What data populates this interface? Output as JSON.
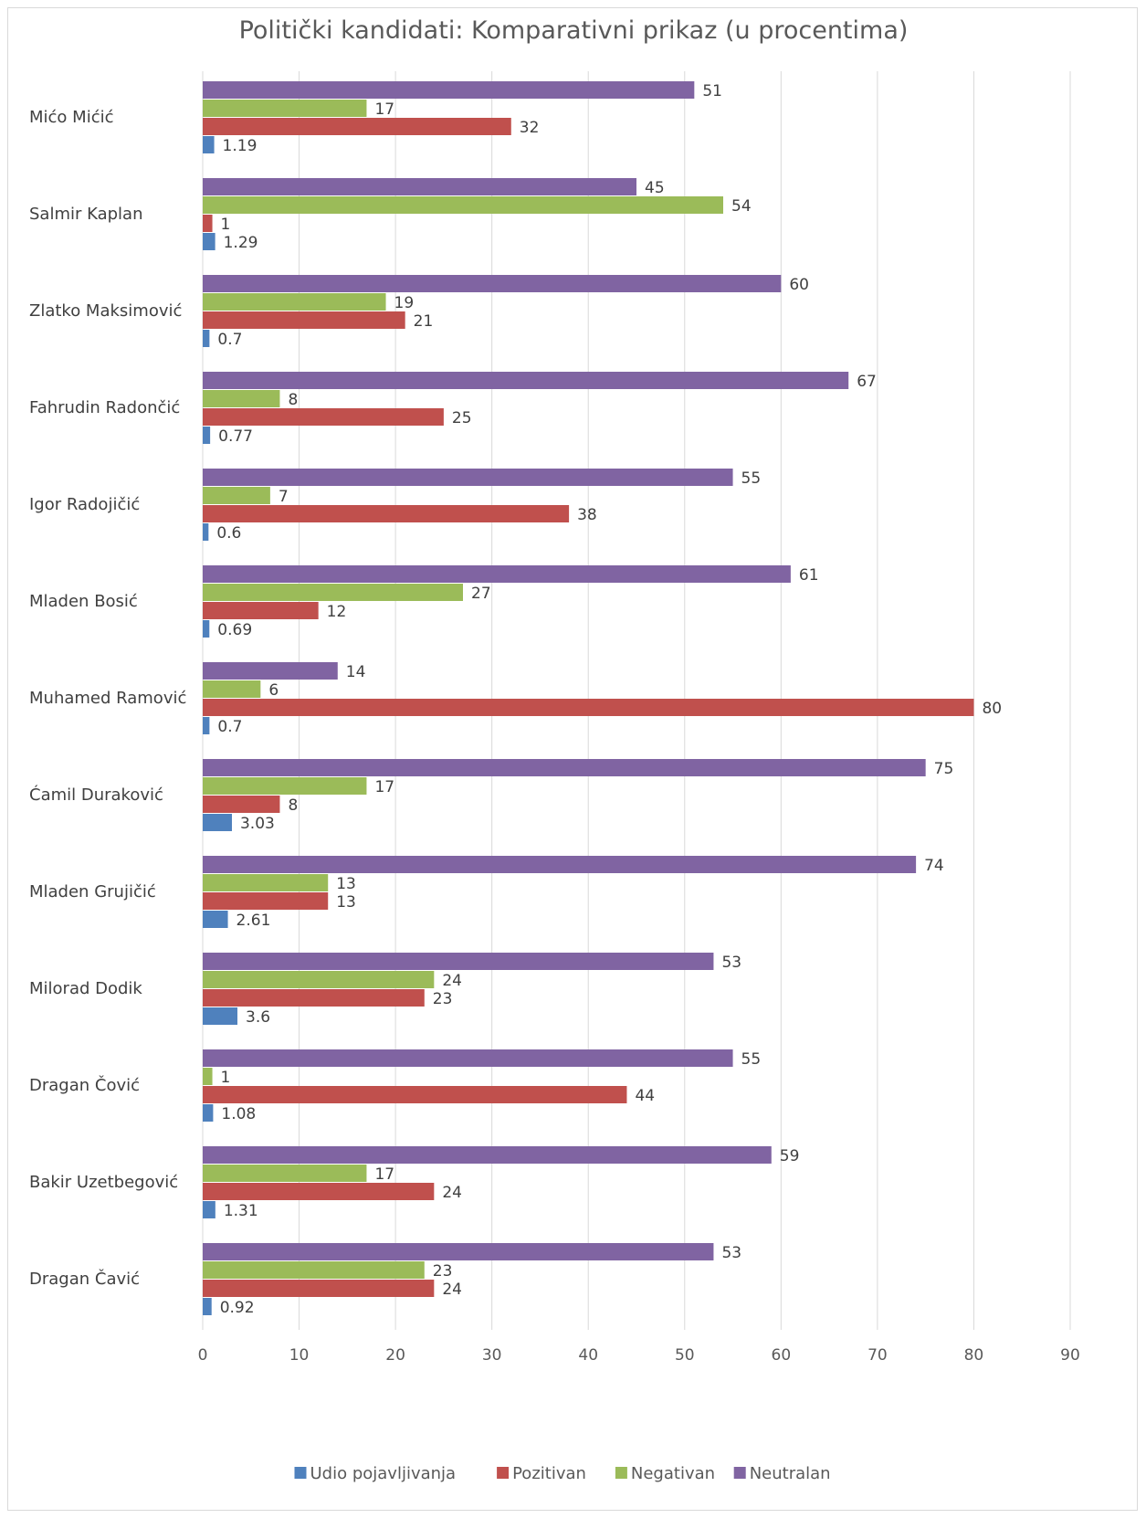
{
  "chart_data": {
    "type": "bar",
    "orientation": "horizontal",
    "title": "Politički kandidati: Komparativni prikaz (u procentima)",
    "categories": [
      "Mićo Mićić",
      "Salmir Kaplan",
      "Zlatko Maksimović",
      "Fahrudin Radončić",
      "Igor Radojičić",
      "Mladen Bosić",
      "Muhamed Ramović",
      "Ćamil Duraković",
      "Mladen Grujičić",
      "Milorad Dodik",
      "Dragan Čović",
      "Bakir Uzetbegović",
      "Dragan Čavić"
    ],
    "series": [
      {
        "name": "Udio pojavljivanja",
        "color": "#4f81bd",
        "values": [
          1.19,
          1.29,
          0.7,
          0.77,
          0.6,
          0.69,
          0.7,
          3.03,
          2.61,
          3.6,
          1.08,
          1.31,
          0.92
        ]
      },
      {
        "name": "Pozitivan",
        "color": "#c0504d",
        "values": [
          32,
          1,
          21,
          25,
          38,
          12,
          80,
          8,
          13,
          23,
          44,
          24,
          24
        ]
      },
      {
        "name": "Negativan",
        "color": "#9bbb59",
        "values": [
          17,
          54,
          19,
          8,
          7,
          27,
          6,
          17,
          13,
          24,
          1,
          17,
          23
        ]
      },
      {
        "name": "Neutralan",
        "color": "#8064a2",
        "values": [
          51,
          45,
          60,
          67,
          55,
          61,
          14,
          75,
          74,
          53,
          55,
          59,
          53
        ]
      }
    ],
    "xlim": [
      0,
      90
    ],
    "xticks": [
      "0",
      "10",
      "20",
      "30",
      "40",
      "50",
      "60",
      "70",
      "80",
      "90"
    ],
    "grid": "vertical",
    "data_labels": true,
    "legend_position": "bottom"
  }
}
